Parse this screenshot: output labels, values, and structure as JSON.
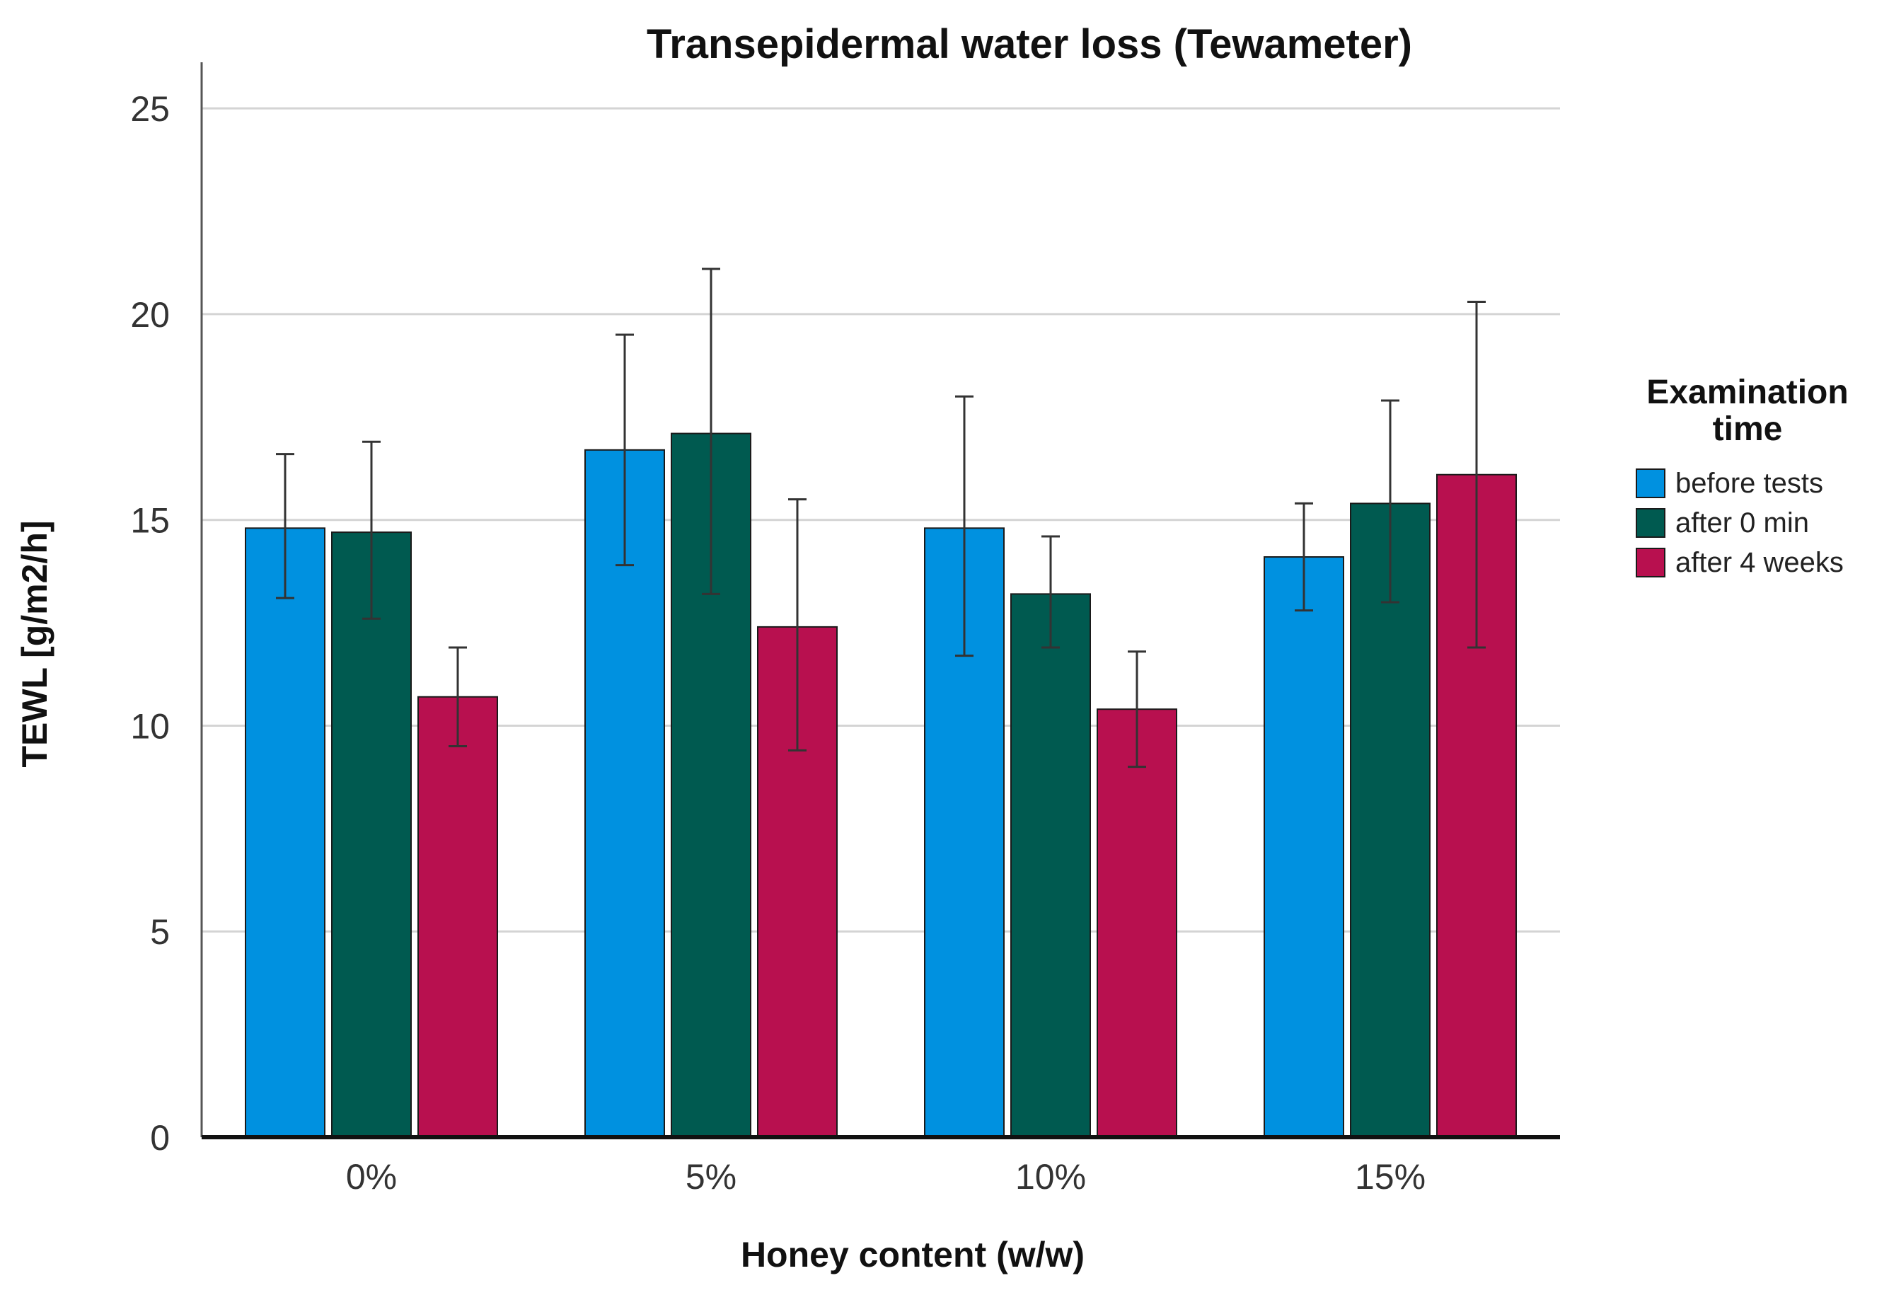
{
  "chart_data": {
    "type": "bar",
    "title": "Transepidermal water loss (Tewameter)",
    "xlabel": "Honey content (w/w)",
    "ylabel": "TEWL [g/m2/h]",
    "categories": [
      "0%",
      "5%",
      "10%",
      "15%"
    ],
    "ylim": [
      0,
      26
    ],
    "yticks": [
      0,
      5,
      10,
      15,
      20,
      25
    ],
    "grid": true,
    "legend": {
      "title": "Examination time",
      "title_lines": [
        "Examination",
        "time"
      ],
      "placement": "right"
    },
    "series": [
      {
        "name": "before tests",
        "color": "#0091e0",
        "values": [
          14.8,
          16.7,
          14.8,
          14.1
        ],
        "error_low": [
          13.1,
          13.9,
          11.7,
          12.8
        ],
        "error_high": [
          16.6,
          19.5,
          18.0,
          15.4
        ]
      },
      {
        "name": "after 0 min",
        "color": "#005a50",
        "values": [
          14.7,
          17.1,
          13.2,
          15.4
        ],
        "error_low": [
          12.6,
          13.2,
          11.9,
          13.0
        ],
        "error_high": [
          16.9,
          21.1,
          14.6,
          17.9
        ]
      },
      {
        "name": "after 4 weeks",
        "color": "#b8104f",
        "values": [
          10.7,
          12.4,
          10.4,
          16.1
        ],
        "error_low": [
          9.5,
          9.4,
          9.0,
          11.9
        ],
        "error_high": [
          11.9,
          15.5,
          11.8,
          20.3
        ]
      }
    ]
  }
}
